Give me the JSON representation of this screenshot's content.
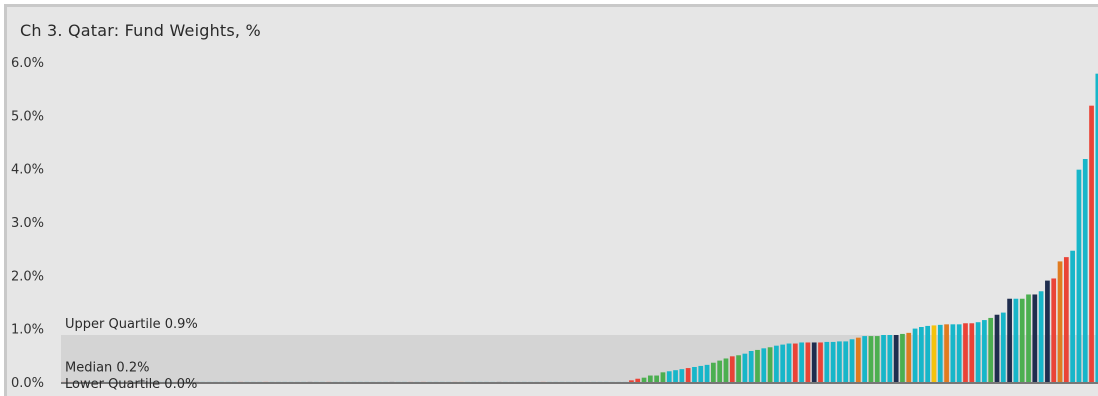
{
  "chart_data": {
    "type": "bar",
    "title": "Ch 3. Qatar:  Fund Weights, %",
    "xlabel": "",
    "ylabel": "",
    "ylim": [
      0,
      6.0
    ],
    "yticks": [
      "0.0%",
      "1.0%",
      "2.0%",
      "3.0%",
      "4.0%",
      "5.0%",
      "6.0%"
    ],
    "ytick_values": [
      0,
      1,
      2,
      3,
      4,
      5,
      6
    ],
    "grid": false,
    "legend": "none",
    "palette": {
      "teal": "#17b6c9",
      "red": "#ea4336",
      "green": "#4caf50",
      "navy": "#1f2d4e",
      "orange": "#e07b20",
      "yellow": "#f4c20d"
    },
    "quartiles": {
      "upper": {
        "label": "Upper Quartile 0.9%",
        "value": 0.9
      },
      "median": {
        "label": "Median 0.2%",
        "value": 0.2
      },
      "lower": {
        "label": "Lower Quartile 0.0%",
        "value": 0.0
      }
    },
    "values": [
      0.02,
      0.02,
      0.02,
      0.02,
      0.02,
      0.02,
      0.02,
      0.02,
      0.02,
      0.02,
      0.02,
      0.02,
      0.02,
      0.02,
      0.02,
      0.02,
      0.02,
      0.02,
      0.02,
      0.02,
      0.02,
      0.02,
      0.02,
      0.02,
      0.02,
      0.02,
      0.02,
      0.02,
      0.02,
      0.02,
      0.02,
      0.02,
      0.02,
      0.02,
      0.02,
      0.02,
      0.02,
      0.02,
      0.02,
      0.02,
      0.02,
      0.02,
      0.02,
      0.02,
      0.02,
      0.02,
      0.02,
      0.02,
      0.02,
      0.02,
      0.02,
      0.02,
      0.02,
      0.02,
      0.02,
      0.02,
      0.02,
      0.02,
      0.02,
      0.02,
      0.02,
      0.02,
      0.02,
      0.02,
      0.02,
      0.02,
      0.02,
      0.02,
      0.02,
      0.02,
      0.02,
      0.02,
      0.02,
      0.02,
      0.02,
      0.02,
      0.02,
      0.02,
      0.02,
      0.02,
      0.02,
      0.02,
      0.02,
      0.02,
      0.02,
      0.02,
      0.02,
      0.02,
      0.02,
      0.02,
      0.05,
      0.08,
      0.1,
      0.14,
      0.14,
      0.2,
      0.22,
      0.24,
      0.26,
      0.28,
      0.3,
      0.32,
      0.34,
      0.38,
      0.42,
      0.46,
      0.5,
      0.52,
      0.55,
      0.6,
      0.62,
      0.65,
      0.67,
      0.7,
      0.72,
      0.74,
      0.74,
      0.76,
      0.76,
      0.76,
      0.76,
      0.77,
      0.77,
      0.78,
      0.78,
      0.82,
      0.85,
      0.88,
      0.88,
      0.88,
      0.9,
      0.9,
      0.9,
      0.92,
      0.94,
      1.02,
      1.05,
      1.07,
      1.08,
      1.09,
      1.1,
      1.1,
      1.1,
      1.12,
      1.12,
      1.14,
      1.18,
      1.22,
      1.28,
      1.32,
      1.58,
      1.58,
      1.58,
      1.66,
      1.66,
      1.72,
      1.92,
      1.96,
      2.28,
      2.36,
      2.48,
      4.0,
      4.2,
      5.2,
      5.8
    ],
    "colors": [
      "red",
      "red",
      "teal",
      "red",
      "teal",
      "teal",
      "navy",
      "teal",
      "teal",
      "teal",
      "orange",
      "teal",
      "teal",
      "navy",
      "teal",
      "teal",
      "teal",
      "teal",
      "red",
      "teal",
      "teal",
      "navy",
      "teal",
      "teal",
      "teal",
      "teal",
      "teal",
      "teal",
      "red",
      "teal",
      "teal",
      "teal",
      "red",
      "teal",
      "teal",
      "teal",
      "teal",
      "teal",
      "teal",
      "navy",
      "teal",
      "teal",
      "red",
      "teal",
      "teal",
      "teal",
      "teal",
      "teal",
      "teal",
      "teal",
      "teal",
      "teal",
      "navy",
      "teal",
      "teal",
      "red",
      "teal",
      "red",
      "teal",
      "teal",
      "teal",
      "teal",
      "red",
      "orange",
      "teal",
      "teal",
      "teal",
      "teal",
      "teal",
      "navy",
      "teal",
      "teal",
      "teal",
      "teal",
      "teal",
      "teal",
      "red",
      "teal",
      "teal",
      "teal",
      "teal",
      "teal",
      "teal",
      "teal",
      "teal",
      "teal",
      "teal",
      "teal",
      "teal",
      "teal",
      "red",
      "red",
      "green",
      "green",
      "green",
      "green",
      "teal",
      "teal",
      "teal",
      "red",
      "teal",
      "teal",
      "teal",
      "green",
      "green",
      "green",
      "red",
      "green",
      "teal",
      "teal",
      "green",
      "teal",
      "green",
      "teal",
      "teal",
      "teal",
      "red",
      "teal",
      "red",
      "navy",
      "red",
      "teal",
      "teal",
      "teal",
      "teal",
      "teal",
      "orange",
      "teal",
      "green",
      "green",
      "teal",
      "teal",
      "navy",
      "green",
      "orange",
      "teal",
      "teal",
      "teal",
      "yellow",
      "teal",
      "orange",
      "teal",
      "teal",
      "red",
      "red",
      "teal",
      "teal",
      "green",
      "navy",
      "teal",
      "navy",
      "teal",
      "green",
      "green",
      "navy",
      "teal",
      "navy",
      "red",
      "orange",
      "red",
      "teal",
      "teal",
      "teal",
      "red"
    ]
  }
}
